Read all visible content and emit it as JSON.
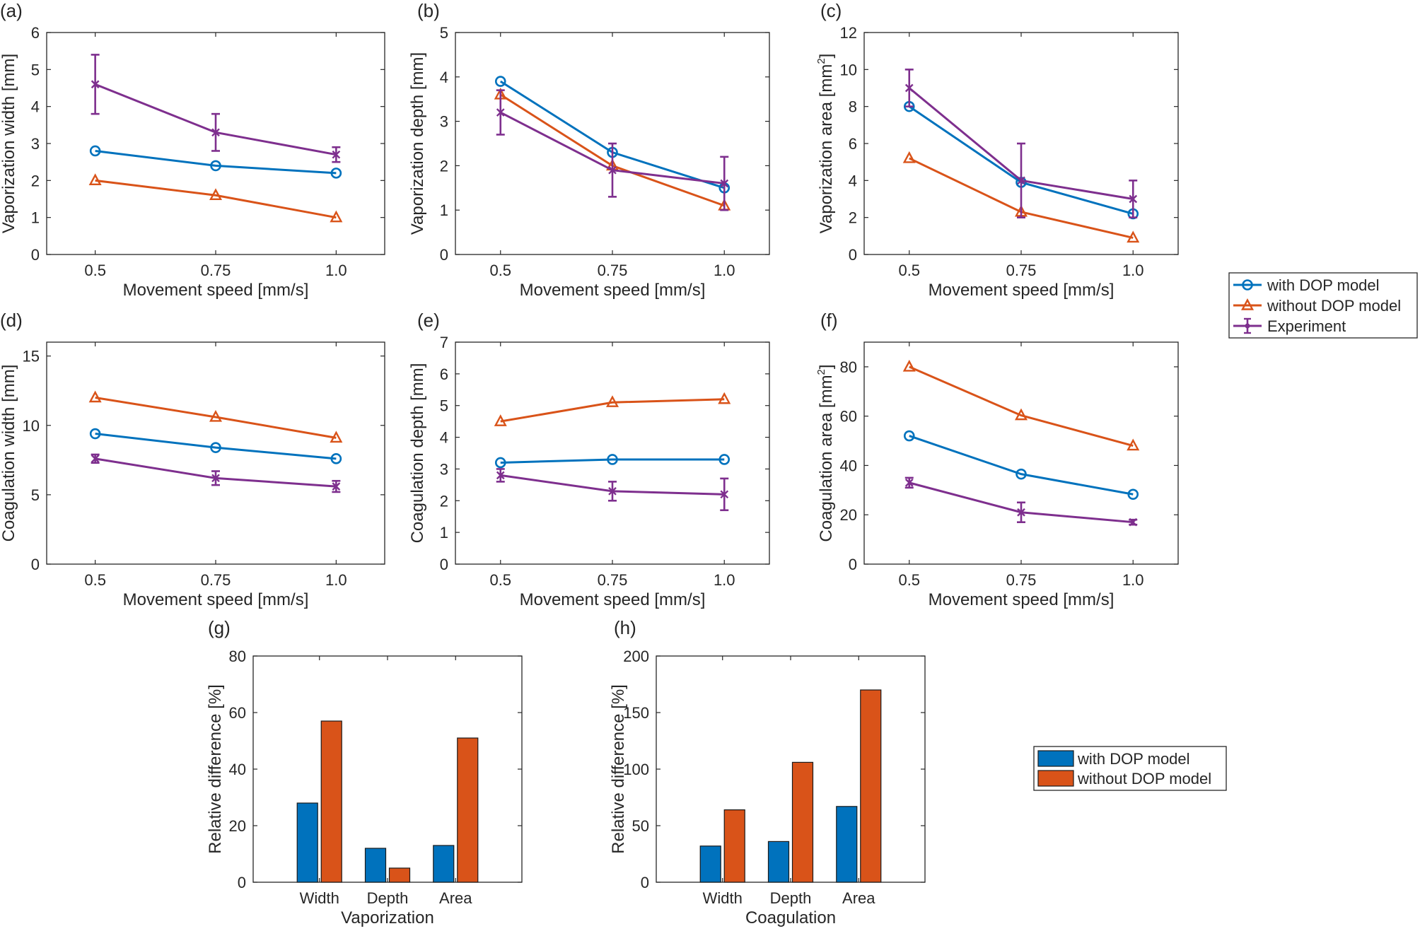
{
  "figure": {
    "colors": {
      "with": "#0072BD",
      "without": "#D95319",
      "exp": "#7E2F8E"
    },
    "line_legend": [
      "with DOP model",
      "without DOP model",
      "Experiment"
    ],
    "bar_legend": [
      "with DOP model",
      "without DOP model"
    ]
  },
  "chart_data": [
    {
      "id": "a",
      "panel_label": "(a)",
      "type": "line",
      "xlabel": "Movement speed [mm/s]",
      "ylabel": "Vaporization width [mm]",
      "ylabel_sup": "",
      "categories": [
        "0.5",
        "0.75",
        "1.0"
      ],
      "ylim": [
        0,
        6
      ],
      "yticks": [
        "0",
        "1",
        "2",
        "3",
        "4",
        "5",
        "6"
      ],
      "series": [
        {
          "name": "with DOP model",
          "values": [
            2.8,
            2.4,
            2.2
          ]
        },
        {
          "name": "without DOP model",
          "values": [
            2.0,
            1.6,
            1.0
          ]
        },
        {
          "name": "Experiment",
          "values": [
            4.6,
            3.3,
            2.7
          ],
          "err": [
            0.8,
            0.5,
            0.2
          ]
        }
      ]
    },
    {
      "id": "b",
      "panel_label": "(b)",
      "type": "line",
      "xlabel": "Movement speed [mm/s]",
      "ylabel": "Vaporization depth [mm]",
      "ylabel_sup": "",
      "categories": [
        "0.5",
        "0.75",
        "1.0"
      ],
      "ylim": [
        0,
        5
      ],
      "yticks": [
        "0",
        "1",
        "2",
        "3",
        "4",
        "5"
      ],
      "series": [
        {
          "name": "with DOP model",
          "values": [
            3.9,
            2.3,
            1.5
          ]
        },
        {
          "name": "without DOP model",
          "values": [
            3.6,
            2.0,
            1.1
          ]
        },
        {
          "name": "Experiment",
          "values": [
            3.2,
            1.9,
            1.6
          ],
          "err": [
            0.5,
            0.6,
            0.6
          ]
        }
      ]
    },
    {
      "id": "c",
      "panel_label": "(c)",
      "type": "line",
      "xlabel": "Movement speed [mm/s]",
      "ylabel": "Vaporization area [mm",
      "ylabel_sup": "2",
      "categories": [
        "0.5",
        "0.75",
        "1.0"
      ],
      "ylim": [
        0,
        12
      ],
      "yticks": [
        "0",
        "2",
        "4",
        "6",
        "8",
        "10",
        "12"
      ],
      "series": [
        {
          "name": "with DOP model",
          "values": [
            8.0,
            3.9,
            2.2
          ]
        },
        {
          "name": "without DOP model",
          "values": [
            5.2,
            2.3,
            0.9
          ]
        },
        {
          "name": "Experiment",
          "values": [
            9.0,
            4.0,
            3.0
          ],
          "err": [
            1.0,
            2.0,
            1.0
          ]
        }
      ]
    },
    {
      "id": "d",
      "panel_label": "(d)",
      "type": "line",
      "xlabel": "Movement speed [mm/s]",
      "ylabel": "Coagulation width [mm]",
      "ylabel_sup": "",
      "categories": [
        "0.5",
        "0.75",
        "1.0"
      ],
      "ylim": [
        0,
        16
      ],
      "yticks": [
        "0",
        "5",
        "10",
        "15"
      ],
      "ytick_values": [
        0,
        5,
        10,
        15
      ],
      "series": [
        {
          "name": "with DOP model",
          "values": [
            9.4,
            8.4,
            7.6
          ]
        },
        {
          "name": "without DOP model",
          "values": [
            12.0,
            10.6,
            9.1
          ]
        },
        {
          "name": "Experiment",
          "values": [
            7.6,
            6.2,
            5.6
          ],
          "err": [
            0.3,
            0.5,
            0.4
          ]
        }
      ]
    },
    {
      "id": "e",
      "panel_label": "(e)",
      "type": "line",
      "xlabel": "Movement speed [mm/s]",
      "ylabel": "Coagulation depth [mm]",
      "ylabel_sup": "",
      "categories": [
        "0.5",
        "0.75",
        "1.0"
      ],
      "ylim": [
        0,
        7
      ],
      "yticks": [
        "0",
        "1",
        "2",
        "3",
        "4",
        "5",
        "6",
        "7"
      ],
      "series": [
        {
          "name": "with DOP model",
          "values": [
            3.2,
            3.3,
            3.3
          ]
        },
        {
          "name": "without DOP model",
          "values": [
            4.5,
            5.1,
            5.2
          ]
        },
        {
          "name": "Experiment",
          "values": [
            2.8,
            2.3,
            2.2
          ],
          "err": [
            0.2,
            0.3,
            0.5
          ]
        }
      ]
    },
    {
      "id": "f",
      "panel_label": "(f)",
      "type": "line",
      "xlabel": "Movement speed [mm/s]",
      "ylabel": "Coagulation area [mm",
      "ylabel_sup": "2",
      "categories": [
        "0.5",
        "0.75",
        "1.0"
      ],
      "ylim": [
        0,
        90
      ],
      "yticks": [
        "0",
        "20",
        "40",
        "60",
        "80"
      ],
      "ytick_values": [
        0,
        20,
        40,
        60,
        80
      ],
      "series": [
        {
          "name": "with DOP model",
          "values": [
            52,
            36.5,
            28.3
          ]
        },
        {
          "name": "without DOP model",
          "values": [
            80,
            60.3,
            48
          ]
        },
        {
          "name": "Experiment",
          "values": [
            33,
            21,
            17
          ],
          "err": [
            2,
            4,
            1
          ]
        }
      ]
    },
    {
      "id": "g",
      "panel_label": "(g)",
      "type": "bar",
      "xlabel": "Vaporization",
      "ylabel": "Relative difference [%]",
      "ylabel_sup": "",
      "categories": [
        "Width",
        "Depth",
        "Area"
      ],
      "ylim": [
        0,
        80
      ],
      "yticks": [
        "0",
        "20",
        "40",
        "60",
        "80"
      ],
      "series": [
        {
          "name": "with DOP model",
          "values": [
            28,
            12,
            13
          ]
        },
        {
          "name": "without DOP model",
          "values": [
            57,
            5,
            51
          ]
        }
      ]
    },
    {
      "id": "h",
      "panel_label": "(h)",
      "type": "bar",
      "xlabel": "Coagulation",
      "ylabel": "Relative difference [%]",
      "ylabel_sup": "",
      "categories": [
        "Width",
        "Depth",
        "Area"
      ],
      "ylim": [
        0,
        200
      ],
      "yticks": [
        "0",
        "50",
        "100",
        "150",
        "200"
      ],
      "series": [
        {
          "name": "with DOP model",
          "values": [
            32,
            36,
            67
          ]
        },
        {
          "name": "without DOP model",
          "values": [
            64,
            106,
            170
          ]
        }
      ]
    }
  ]
}
